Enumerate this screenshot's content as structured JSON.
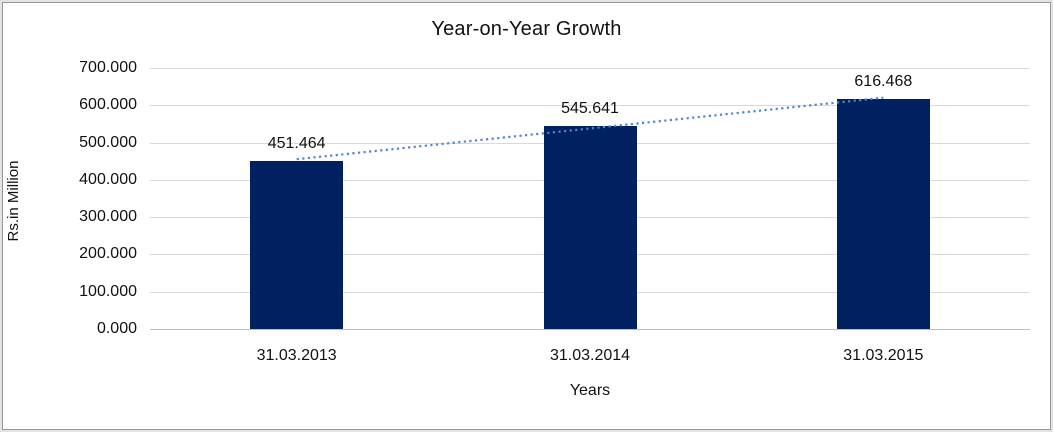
{
  "chart_data": {
    "type": "bar",
    "title": "Year-on-Year Growth",
    "categories": [
      "31.03.2013",
      "31.03.2014",
      "31.03.2015"
    ],
    "values": [
      451.464,
      545.641,
      616.468
    ],
    "value_labels": [
      "451.464",
      "545.641",
      "616.468"
    ],
    "xlabel": "Years",
    "ylabel": "Rs.in Million",
    "ylim": [
      0,
      700
    ],
    "ytick_step": 100,
    "ytick_labels_top_to_bottom": [
      "700.000",
      "600.000",
      "500.000",
      "400.000",
      "300.000",
      "200.000",
      "100.000",
      "0.000"
    ],
    "grid": true,
    "legend": false,
    "trendline": {
      "type": "linear",
      "style": "dotted",
      "color": "#4e87c8"
    },
    "colors": {
      "bar": "#002060",
      "trendline": "#4e87c8",
      "gridline": "#d9d9d9",
      "axis_line": "#bfbfbf",
      "text": "#111111"
    }
  }
}
